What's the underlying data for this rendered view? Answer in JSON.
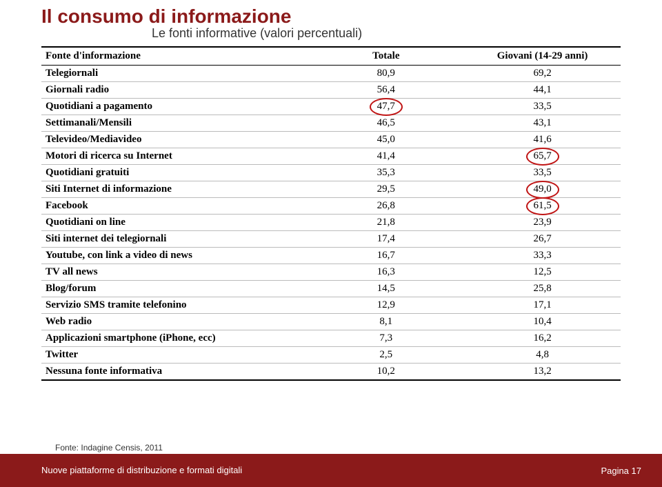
{
  "title": "Il consumo di informazione",
  "subtitle": "Le fonti informative (valori percentuali)",
  "columns": [
    "Fonte d'informazione",
    "Totale",
    "Giovani (14-29 anni)"
  ],
  "rows": [
    {
      "label": "Telegiornali",
      "c1": "80,9",
      "c2": "69,2",
      "circ1": false,
      "circ2": false
    },
    {
      "label": "Giornali radio",
      "c1": "56,4",
      "c2": "44,1",
      "circ1": false,
      "circ2": false
    },
    {
      "label": "Quotidiani a pagamento",
      "c1": "47,7",
      "c2": "33,5",
      "circ1": true,
      "circ2": false
    },
    {
      "label": "Settimanali/Mensili",
      "c1": "46,5",
      "c2": "43,1",
      "circ1": false,
      "circ2": false
    },
    {
      "label": "Televideo/Mediavideo",
      "c1": "45,0",
      "c2": "41,6",
      "circ1": false,
      "circ2": false
    },
    {
      "label": "Motori di ricerca su Internet",
      "c1": "41,4",
      "c2": "65,7",
      "circ1": false,
      "circ2": true
    },
    {
      "label": "Quotidiani gratuiti",
      "c1": "35,3",
      "c2": "33,5",
      "circ1": false,
      "circ2": false
    },
    {
      "label": "Siti Internet di informazione",
      "c1": "29,5",
      "c2": "49,0",
      "circ1": false,
      "circ2": true
    },
    {
      "label": "Facebook",
      "c1": "26,8",
      "c2": "61,5",
      "circ1": false,
      "circ2": true
    },
    {
      "label": "Quotidiani on line",
      "c1": "21,8",
      "c2": "23,9",
      "circ1": false,
      "circ2": false
    },
    {
      "label": "Siti internet dei telegiornali",
      "c1": "17,4",
      "c2": "26,7",
      "circ1": false,
      "circ2": false
    },
    {
      "label": "Youtube, con link a video di news",
      "c1": "16,7",
      "c2": "33,3",
      "circ1": false,
      "circ2": false
    },
    {
      "label": "TV all news",
      "c1": "16,3",
      "c2": "12,5",
      "circ1": false,
      "circ2": false
    },
    {
      "label": "Blog/forum",
      "c1": "14,5",
      "c2": "25,8",
      "circ1": false,
      "circ2": false
    },
    {
      "label": "Servizio SMS tramite telefonino",
      "c1": "12,9",
      "c2": "17,1",
      "circ1": false,
      "circ2": false
    },
    {
      "label": "Web radio",
      "c1": "8,1",
      "c2": "10,4",
      "circ1": false,
      "circ2": false
    },
    {
      "label": "Applicazioni smartphone (iPhone, ecc)",
      "c1": "7,3",
      "c2": "16,2",
      "circ1": false,
      "circ2": false
    },
    {
      "label": "Twitter",
      "c1": "2,5",
      "c2": "4,8",
      "circ1": false,
      "circ2": false
    },
    {
      "label": "Nessuna fonte informativa",
      "c1": "10,2",
      "c2": "13,2",
      "circ1": false,
      "circ2": false
    }
  ],
  "source": "Fonte: Indagine Censis, 2011",
  "footer_left": "Nuove piattaforme di distribuzione e formati digitali",
  "page": "Pagina 17",
  "colors": {
    "title": "#8b1a1a",
    "footer_bg": "#8b1a1a",
    "circle": "#c01515",
    "row_border": "#bbbbbb",
    "header_border": "#000000"
  }
}
